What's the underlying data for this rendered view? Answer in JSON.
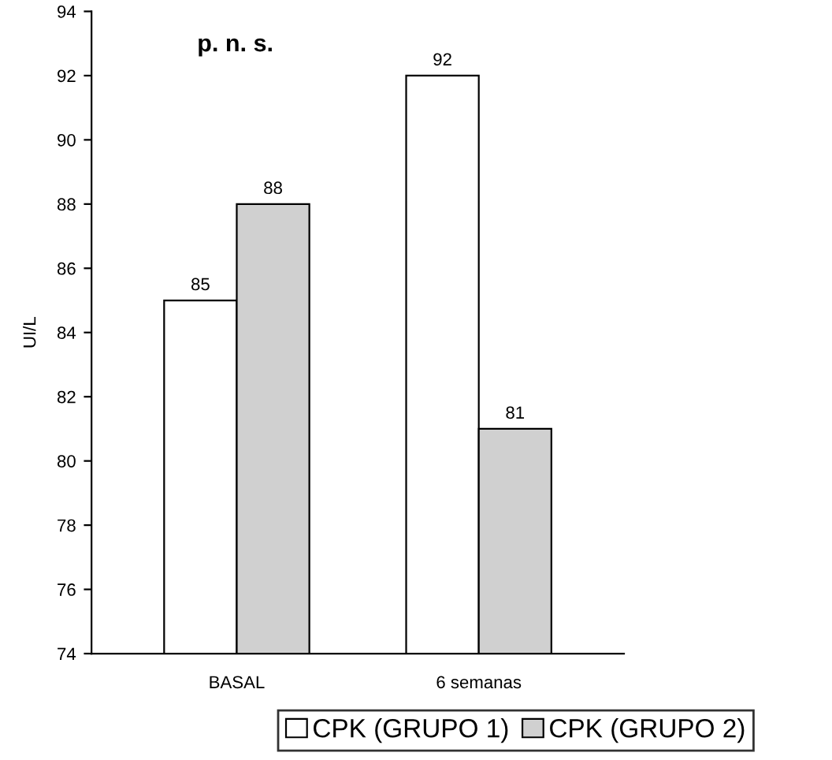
{
  "chart_data": {
    "type": "bar",
    "title": "p. n. s.",
    "ylabel": "UI/L",
    "categories": [
      "BASAL",
      "6 semanas"
    ],
    "series": [
      {
        "name": "CPK (GRUPO 1)",
        "color": "#ffffff",
        "values": [
          85,
          92
        ]
      },
      {
        "name": "CPK (GRUPO 2)",
        "color": "#d0d0d0",
        "values": [
          88,
          81
        ]
      }
    ],
    "ylim": [
      74,
      94
    ],
    "yticks": [
      74,
      76,
      78,
      80,
      82,
      84,
      86,
      88,
      90,
      92,
      94
    ],
    "data_labels": true,
    "grid": false,
    "legend": "bottom"
  }
}
